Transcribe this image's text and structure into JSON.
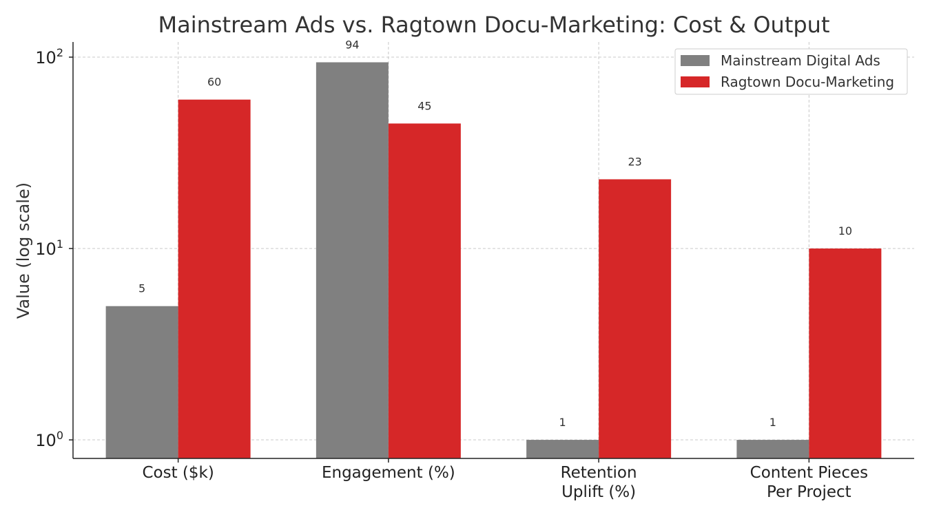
{
  "chart_data": {
    "type": "bar",
    "title": "Mainstream Ads vs. Ragtown Docu-Marketing: Cost & Output",
    "xlabel": "",
    "ylabel": "Value (log scale)",
    "y_scale": "log",
    "ylim": [
      0.8,
      120
    ],
    "y_ticks": [
      {
        "value": 1,
        "base": "10",
        "exp": "0"
      },
      {
        "value": 10,
        "base": "10",
        "exp": "1"
      },
      {
        "value": 100,
        "base": "10",
        "exp": "2"
      }
    ],
    "categories": [
      [
        "Cost ($k)"
      ],
      [
        "Engagement (%)"
      ],
      [
        "Retention",
        "Uplift (%)"
      ],
      [
        "Content Pieces",
        "Per Project"
      ]
    ],
    "series": [
      {
        "name": "Mainstream Digital Ads",
        "color": "#808080",
        "values": [
          5,
          94,
          1,
          1
        ]
      },
      {
        "name": "Ragtown Docu-Marketing",
        "color": "#d62728",
        "values": [
          60,
          45,
          23,
          10
        ]
      }
    ],
    "grid": true,
    "legend_position": "top-right"
  }
}
